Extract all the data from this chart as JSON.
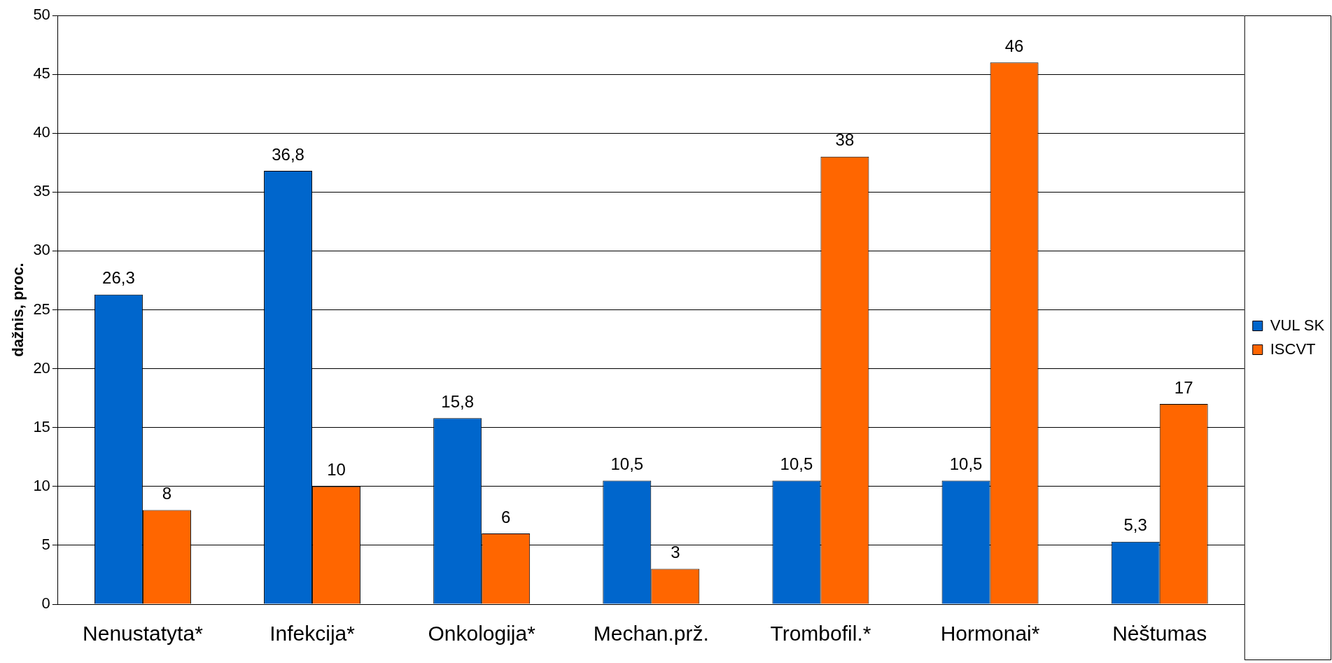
{
  "chart_data": {
    "type": "bar",
    "ylabel": "dažnis, proc.",
    "categories": [
      "Nenustatyta*",
      "Infekcija*",
      "Onkologija*",
      "Mechan.prž.",
      "Trombofil.*",
      "Hormonai*",
      "Nėštumas"
    ],
    "series": [
      {
        "name": "VUL SK",
        "color": "#0066cc",
        "values": [
          26.3,
          36.8,
          15.8,
          10.5,
          10.5,
          10.5,
          5.3
        ],
        "value_labels": [
          "26,3",
          "36,8",
          "15,8",
          "10,5",
          "10,5",
          "10,5",
          "5,3"
        ]
      },
      {
        "name": "ISCVT",
        "color": "#ff6600",
        "values": [
          8,
          10,
          6,
          3,
          38,
          46,
          17
        ],
        "value_labels": [
          "8",
          "10",
          "6",
          "3",
          "38",
          "46",
          "17"
        ]
      }
    ],
    "ylim": [
      0,
      50
    ],
    "yticks": [
      0,
      5,
      10,
      15,
      20,
      25,
      30,
      35,
      40,
      45,
      50
    ],
    "grid": "y",
    "legend": "right"
  }
}
